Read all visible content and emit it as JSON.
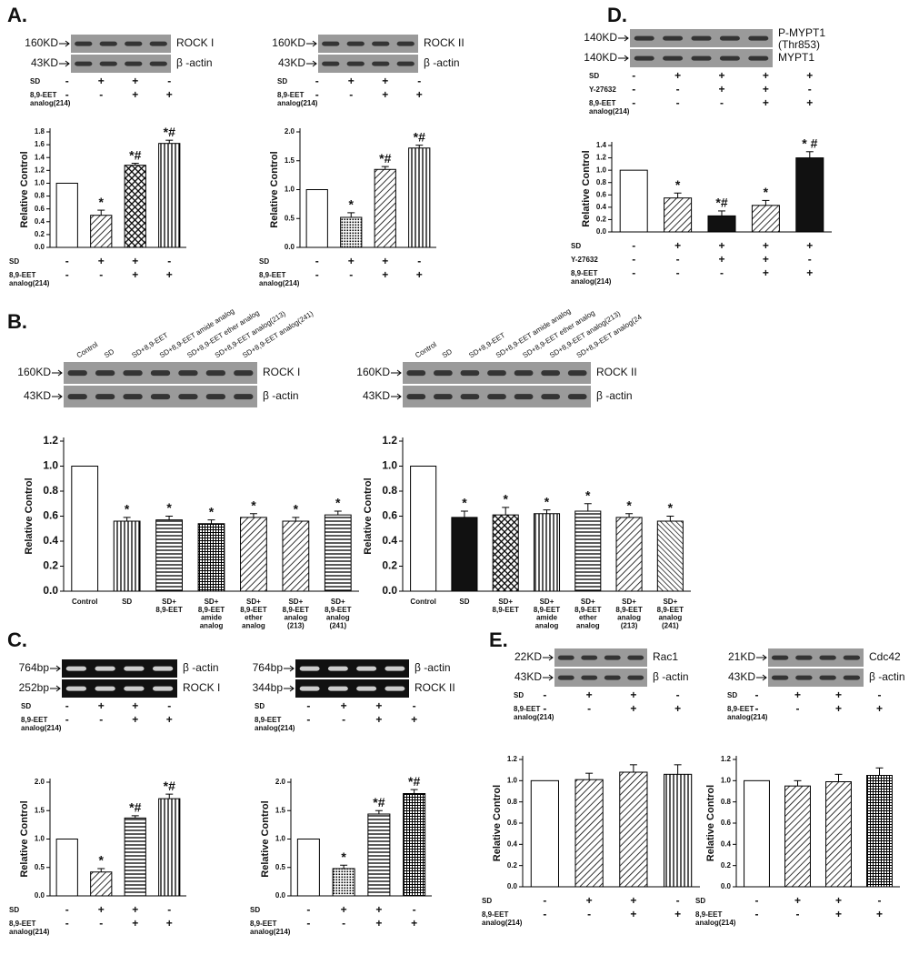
{
  "panel_labels": [
    "A.",
    "B.",
    "C.",
    "D.",
    "E."
  ],
  "chart_data": [
    {
      "type": "bar",
      "ylabel": "Relative Control",
      "categories": [
        null,
        null,
        null,
        null
      ],
      "values": [
        1.0,
        0.5,
        1.28,
        1.62
      ],
      "errors": [
        0,
        0.08,
        0.03,
        0.05
      ],
      "annotations": [
        "",
        "*",
        "*#",
        "*#"
      ],
      "patterns": [
        "white",
        "diag",
        "cross",
        "vert"
      ],
      "conditions": [
        {
          "label": "SD",
          "signs": [
            "-",
            "+",
            "+",
            "-"
          ]
        },
        {
          "label": "8,9-EET\nanalog(214)",
          "signs": [
            "-",
            "-",
            "+",
            "+"
          ]
        }
      ],
      "blots": [
        {
          "size": "160KD",
          "label": "ROCK I"
        },
        {
          "size": "43KD",
          "label": "β -actin"
        }
      ],
      "ylim": [
        0,
        1.8
      ],
      "yticks": [
        {
          "value": 0,
          "label": "0.0"
        },
        {
          "value": 0.2,
          "label": "0.2"
        },
        {
          "value": 0.4,
          "label": "0.4"
        },
        {
          "value": 0.6,
          "label": "0.6"
        },
        {
          "value": 0.8,
          "label": "0.8"
        },
        {
          "value": 1.0,
          "label": "1.0"
        },
        {
          "value": 1.2,
          "label": "1.2"
        },
        {
          "value": 1.4,
          "label": "1.4"
        },
        {
          "value": 1.6,
          "label": "1.6"
        },
        {
          "value": 1.8,
          "label": "1.8"
        }
      ]
    },
    {
      "type": "bar",
      "ylabel": "Relative Control",
      "categories": [
        null,
        null,
        null,
        null
      ],
      "values": [
        1.0,
        0.52,
        1.35,
        1.72
      ],
      "errors": [
        0,
        0.08,
        0.05,
        0.05
      ],
      "annotations": [
        "",
        "*",
        "*#",
        "*#"
      ],
      "patterns": [
        "white",
        "dots",
        "diag",
        "vert"
      ],
      "conditions": [
        {
          "label": "SD",
          "signs": [
            "-",
            "+",
            "+",
            "-"
          ]
        },
        {
          "label": "8,9-EET\nanalog(214)",
          "signs": [
            "-",
            "-",
            "+",
            "+"
          ]
        }
      ],
      "blots": [
        {
          "size": "160KD",
          "label": "ROCK II"
        },
        {
          "size": "43KD",
          "label": "β -actin"
        }
      ],
      "ylim": [
        0,
        2.0
      ],
      "yticks": [
        {
          "value": 0,
          "label": "0.0"
        },
        {
          "value": 0.5,
          "label": "0.5"
        },
        {
          "value": 1.0,
          "label": "1.0"
        },
        {
          "value": 1.5,
          "label": "1.5"
        },
        {
          "value": 2.0,
          "label": "2.0"
        }
      ]
    },
    {
      "type": "bar",
      "ylabel": "Relative Control",
      "categories": [
        null,
        null,
        null,
        null,
        null
      ],
      "values": [
        1.0,
        0.55,
        0.26,
        0.43,
        1.2
      ],
      "errors": [
        0,
        0.08,
        0.08,
        0.08,
        0.1
      ],
      "annotations": [
        "",
        "*",
        "*#",
        "*",
        "* #"
      ],
      "patterns": [
        "white",
        "diag",
        "black",
        "diag",
        "black"
      ],
      "conditions": [
        {
          "label": "SD",
          "signs": [
            "-",
            "+",
            "+",
            "+",
            "+"
          ]
        },
        {
          "label": "Y-27632",
          "signs": [
            "-",
            "-",
            "+",
            "+",
            "-"
          ]
        },
        {
          "label": "8,9-EET\nanalog(214)",
          "signs": [
            "-",
            "-",
            "-",
            "+",
            "+"
          ]
        }
      ],
      "blots": [
        {
          "size": "140KD",
          "label": "P-MYPT1\n(Thr853)"
        },
        {
          "size": "140KD",
          "label": "MYPT1"
        }
      ],
      "ylim": [
        0,
        1.4
      ],
      "yticks": [
        {
          "value": 0,
          "label": "0.0"
        },
        {
          "value": 0.2,
          "label": "0.2"
        },
        {
          "value": 0.4,
          "label": "0.4"
        },
        {
          "value": 0.6,
          "label": "0.6"
        },
        {
          "value": 0.8,
          "label": "0.8"
        },
        {
          "value": 1.0,
          "label": "1.0"
        },
        {
          "value": 1.2,
          "label": "1.2"
        },
        {
          "value": 1.4,
          "label": "1.4"
        }
      ]
    },
    {
      "type": "bar",
      "ylabel": "Relative Control",
      "categories": [
        "Control",
        "SD",
        "SD+\n8,9-EET",
        "SD+\n8,9-EET\namide\nanalog",
        "SD+\n8,9-EET\nether\nanalog",
        "SD+\n8,9-EET\nanalog\n(213)",
        "SD+\n8,9-EET\nanalog\n(241)"
      ],
      "values": [
        1.0,
        0.56,
        0.57,
        0.54,
        0.59,
        0.56,
        0.61
      ],
      "errors": [
        0,
        0.03,
        0.03,
        0.03,
        0.03,
        0.03,
        0.03
      ],
      "annotations": [
        "",
        "*",
        "*",
        "*",
        "*",
        "*",
        "*"
      ],
      "patterns": [
        "white",
        "vert",
        "horiz",
        "grid",
        "diag",
        "diag",
        "horiz"
      ],
      "lanes": [
        "Control",
        "SD",
        "SD+8,9-EET",
        "SD+8,9-EET amide analog",
        "SD+8,9-EET ether analog",
        "SD+8,9-EET analog(213)",
        "SD+8,9-EET analog(241)"
      ],
      "blots": [
        {
          "size": "160KD",
          "label": "ROCK I"
        },
        {
          "size": "43KD",
          "label": "β -actin"
        }
      ],
      "ylim": [
        0,
        1.2
      ],
      "yticks": [
        {
          "value": 0,
          "label": "0.0"
        },
        {
          "value": 0.2,
          "label": "0.2"
        },
        {
          "value": 0.4,
          "label": "0.4"
        },
        {
          "value": 0.6,
          "label": "0.6"
        },
        {
          "value": 0.8,
          "label": "0.8"
        },
        {
          "value": 1.0,
          "label": "1.0"
        },
        {
          "value": 1.2,
          "label": "1.2"
        }
      ]
    },
    {
      "type": "bar",
      "ylabel": "Relative Control",
      "categories": [
        "Control",
        "SD",
        "SD+\n8,9-EET",
        "SD+\n8,9-EET\namide\nanalog",
        "SD+\n8,9-EET\nether\nanalog",
        "SD+\n8,9-EET\nanalog\n(213)",
        "SD+\n8,9-EET\nanalog\n(241)"
      ],
      "values": [
        1.0,
        0.59,
        0.61,
        0.62,
        0.64,
        0.59,
        0.56
      ],
      "errors": [
        0,
        0.05,
        0.06,
        0.03,
        0.06,
        0.03,
        0.04
      ],
      "annotations": [
        "",
        "*",
        "*",
        "*",
        "*",
        "*",
        "*"
      ],
      "patterns": [
        "white",
        "black",
        "cross",
        "vert",
        "horiz",
        "diag",
        "bdiag"
      ],
      "lanes": [
        "Control",
        "SD",
        "SD+8,9-EET",
        "SD+8,9-EET amide analog",
        "SD+8,9-EET ether analog",
        "SD+8,9-EET analog(213)",
        "SD+8,9-EET analog(24"
      ],
      "blots": [
        {
          "size": "160KD",
          "label": "ROCK II"
        },
        {
          "size": "43KD",
          "label": "β -actin"
        }
      ],
      "ylim": [
        0,
        1.2
      ],
      "yticks": [
        {
          "value": 0,
          "label": "0.0"
        },
        {
          "value": 0.2,
          "label": "0.2"
        },
        {
          "value": 0.4,
          "label": "0.4"
        },
        {
          "value": 0.6,
          "label": "0.6"
        },
        {
          "value": 0.8,
          "label": "0.8"
        },
        {
          "value": 1.0,
          "label": "1.0"
        },
        {
          "value": 1.2,
          "label": "1.2"
        }
      ]
    },
    {
      "type": "bar",
      "ylabel": "Relative Control",
      "categories": [
        null,
        null,
        null,
        null
      ],
      "values": [
        1.0,
        0.42,
        1.37,
        1.71
      ],
      "errors": [
        0,
        0.06,
        0.04,
        0.08
      ],
      "annotations": [
        "",
        "*",
        "*#",
        "*#"
      ],
      "patterns": [
        "white",
        "diag",
        "horiz",
        "vert"
      ],
      "conditions": [
        {
          "label": "SD",
          "signs": [
            "-",
            "+",
            "+",
            "-"
          ]
        },
        {
          "label": "8,9-EET\nanalog(214)",
          "signs": [
            "-",
            "-",
            "+",
            "+"
          ]
        }
      ],
      "blots": [
        {
          "size": "764bp",
          "label": "β -actin"
        },
        {
          "size": "252bp",
          "label": "ROCK I"
        }
      ],
      "gel": true,
      "ylim": [
        0,
        2.0
      ],
      "yticks": [
        {
          "value": 0,
          "label": "0.0"
        },
        {
          "value": 0.5,
          "label": "0.5"
        },
        {
          "value": 1.0,
          "label": "1.0"
        },
        {
          "value": 1.5,
          "label": "1.5"
        },
        {
          "value": 2.0,
          "label": "2.0"
        }
      ]
    },
    {
      "type": "bar",
      "ylabel": "Relative Control",
      "categories": [
        null,
        null,
        null,
        null
      ],
      "values": [
        1.0,
        0.48,
        1.44,
        1.8
      ],
      "errors": [
        0,
        0.06,
        0.06,
        0.07
      ],
      "annotations": [
        "",
        "*",
        "*#",
        "*#"
      ],
      "patterns": [
        "white",
        "dots",
        "horiz",
        "grid"
      ],
      "conditions": [
        {
          "label": "SD",
          "signs": [
            "-",
            "+",
            "+",
            "-"
          ]
        },
        {
          "label": "8,9-EET\nanalog(214)",
          "signs": [
            "-",
            "-",
            "+",
            "+"
          ]
        }
      ],
      "blots": [
        {
          "size": "764bp",
          "label": "β -actin"
        },
        {
          "size": "344bp",
          "label": "ROCK II"
        }
      ],
      "gel": true,
      "ylim": [
        0,
        2.0
      ],
      "yticks": [
        {
          "value": 0,
          "label": "0.0"
        },
        {
          "value": 0.5,
          "label": "0.5"
        },
        {
          "value": 1.0,
          "label": "1.0"
        },
        {
          "value": 1.5,
          "label": "1.5"
        },
        {
          "value": 2.0,
          "label": "2.0"
        }
      ]
    },
    {
      "type": "bar",
      "ylabel": "Relative Control",
      "categories": [
        null,
        null,
        null,
        null
      ],
      "values": [
        1.0,
        1.01,
        1.08,
        1.06
      ],
      "errors": [
        0,
        0.06,
        0.07,
        0.09
      ],
      "annotations": [
        "",
        "",
        "",
        ""
      ],
      "patterns": [
        "white",
        "diag",
        "diag",
        "vert"
      ],
      "conditions": [
        {
          "label": "SD",
          "signs": [
            "-",
            "+",
            "+",
            "-"
          ]
        },
        {
          "label": "8,9-EET\nanalog(214)",
          "signs": [
            "-",
            "-",
            "+",
            "+"
          ]
        }
      ],
      "blots": [
        {
          "size": "22KD",
          "label": "Rac1"
        },
        {
          "size": "43KD",
          "label": "β -actin"
        }
      ],
      "ylim": [
        0,
        1.2
      ],
      "yticks": [
        {
          "value": 0,
          "label": "0.0"
        },
        {
          "value": 0.2,
          "label": "0.2"
        },
        {
          "value": 0.4,
          "label": "0.4"
        },
        {
          "value": 0.6,
          "label": "0.6"
        },
        {
          "value": 0.8,
          "label": "0.8"
        },
        {
          "value": 1.0,
          "label": "1.0"
        },
        {
          "value": 1.2,
          "label": "1.2"
        }
      ]
    },
    {
      "type": "bar",
      "ylabel": "Relative Control",
      "categories": [
        null,
        null,
        null,
        null
      ],
      "values": [
        1.0,
        0.95,
        0.99,
        1.05
      ],
      "errors": [
        0,
        0.05,
        0.07,
        0.07
      ],
      "annotations": [
        "",
        "",
        "",
        ""
      ],
      "patterns": [
        "white",
        "diag",
        "diag",
        "grid"
      ],
      "conditions": [
        {
          "label": "SD",
          "signs": [
            "-",
            "+",
            "+",
            "-"
          ]
        },
        {
          "label": "8,9-EET\nanalog(214)",
          "signs": [
            "-",
            "-",
            "+",
            "+"
          ]
        }
      ],
      "blots": [
        {
          "size": "21KD",
          "label": "Cdc42"
        },
        {
          "size": "43KD",
          "label": "β -actin"
        }
      ],
      "ylim": [
        0,
        1.2
      ],
      "yticks": [
        {
          "value": 0,
          "label": "0.0"
        },
        {
          "value": 0.2,
          "label": "0.2"
        },
        {
          "value": 0.4,
          "label": "0.4"
        },
        {
          "value": 0.6,
          "label": "0.6"
        },
        {
          "value": 0.8,
          "label": "0.8"
        },
        {
          "value": 1.0,
          "label": "1.0"
        },
        {
          "value": 1.2,
          "label": "1.2"
        }
      ]
    }
  ]
}
